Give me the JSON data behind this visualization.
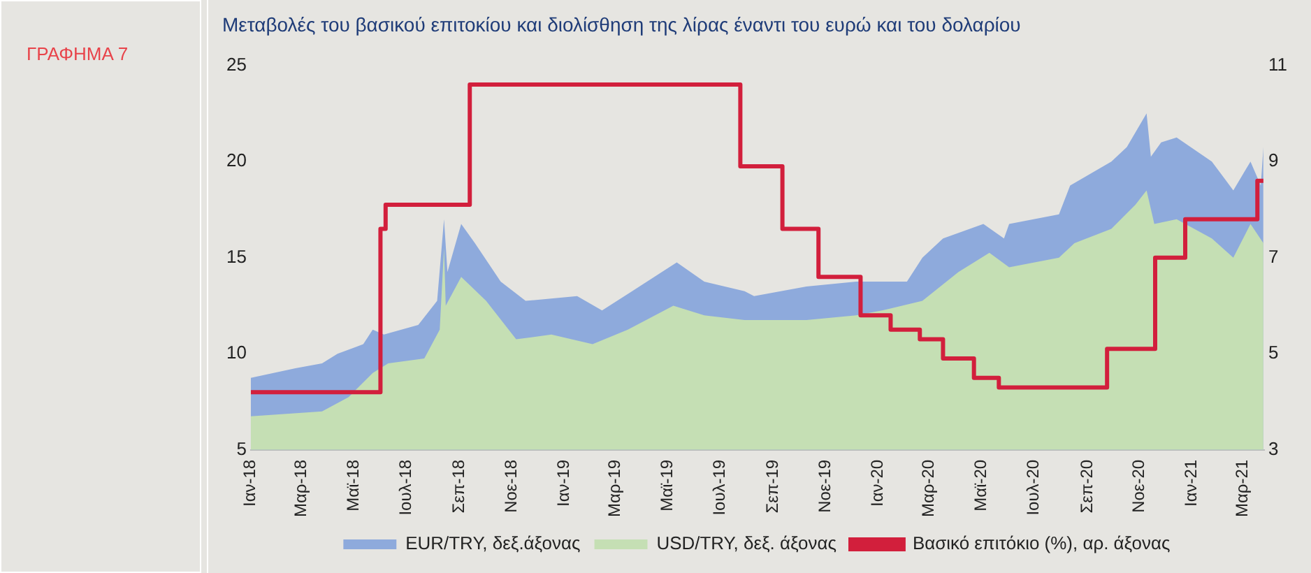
{
  "chart_data": {
    "type": "area",
    "title": "Μεταβολές του βασικού επιτοκίου και διολίσθηση της λίρας έναντι του ευρώ και του δολαρίου",
    "annotations": [
      "ΓΡΑΦΗΜΑ 7"
    ],
    "xlim": [
      "2018-01-01",
      "2021-03-26"
    ],
    "xticks": [
      {
        "value": "2018-01-01",
        "label": "Ιαν-18"
      },
      {
        "value": "2018-03-01",
        "label": "Μαρ-18"
      },
      {
        "value": "2018-05-01",
        "label": "Μαϊ-18"
      },
      {
        "value": "2018-07-01",
        "label": "Ιουλ-18"
      },
      {
        "value": "2018-09-01",
        "label": "Σεπ-18"
      },
      {
        "value": "2018-11-01",
        "label": "Νοε-18"
      },
      {
        "value": "2019-01-01",
        "label": "Ιαν-19"
      },
      {
        "value": "2019-03-01",
        "label": "Μαρ-19"
      },
      {
        "value": "2019-05-01",
        "label": "Μαϊ-19"
      },
      {
        "value": "2019-07-01",
        "label": "Ιουλ-19"
      },
      {
        "value": "2019-09-01",
        "label": "Σεπ-19"
      },
      {
        "value": "2019-11-01",
        "label": "Νοε-19"
      },
      {
        "value": "2020-01-01",
        "label": "Ιαν-20"
      },
      {
        "value": "2020-03-01",
        "label": "Μαρ-20"
      },
      {
        "value": "2020-05-01",
        "label": "Μαϊ-20"
      },
      {
        "value": "2020-07-01",
        "label": "Ιουλ-20"
      },
      {
        "value": "2020-09-01",
        "label": "Σεπ-20"
      },
      {
        "value": "2020-11-01",
        "label": "Νοε-20"
      },
      {
        "value": "2021-01-01",
        "label": "Ιαν-21"
      },
      {
        "value": "2021-03-01",
        "label": "Μαρ-21"
      }
    ],
    "ylim": [
      5,
      25
    ],
    "yticks": [
      5,
      10,
      15,
      20,
      25
    ],
    "y2lim": [
      3,
      11
    ],
    "y2ticks": [
      3,
      5,
      7,
      9,
      11
    ],
    "grid": false,
    "legend": "bottom",
    "marker": "none",
    "series": [
      {
        "name": "EUR/TRY, δεξ.άξονας",
        "axis": "y2",
        "color": "#8eaadc",
        "x": [
          "2018-01-01",
          "2018-02-22",
          "2018-03-25",
          "2018-04-12",
          "2018-05-12",
          "2018-05-23",
          "2018-06-05",
          "2018-07-15",
          "2018-08-06",
          "2018-08-14",
          "2018-08-18",
          "2018-09-03",
          "2018-09-19",
          "2018-10-19",
          "2018-11-17",
          "2019-01-16",
          "2019-02-14",
          "2019-03-21",
          "2019-05-12",
          "2019-06-13",
          "2019-07-30",
          "2019-08-10",
          "2019-10-10",
          "2019-12-07",
          "2020-02-04",
          "2020-02-22",
          "2020-03-17",
          "2020-05-03",
          "2020-05-27",
          "2020-06-02",
          "2020-07-30",
          "2020-08-12",
          "2020-09-29",
          "2020-10-17",
          "2020-11-09",
          "2020-11-14",
          "2020-11-26",
          "2020-12-14",
          "2021-01-24",
          "2021-02-18",
          "2021-03-10",
          "2021-03-22",
          "2021-03-25"
        ],
        "values": [
          4.5,
          4.7,
          4.8,
          5.0,
          5.2,
          5.5,
          5.4,
          5.6,
          6.1,
          7.8,
          6.7,
          7.7,
          7.3,
          6.5,
          6.1,
          6.2,
          5.9,
          6.3,
          6.9,
          6.5,
          6.3,
          6.2,
          6.4,
          6.5,
          6.5,
          7.0,
          7.4,
          7.7,
          7.4,
          7.7,
          7.9,
          8.5,
          9.0,
          9.3,
          10.0,
          9.1,
          9.4,
          9.5,
          9.0,
          8.4,
          9.0,
          8.5,
          9.3
        ]
      },
      {
        "name": "USD/TRY, δεξ. άξονας",
        "axis": "y2",
        "color": "#c5dfb4",
        "x": [
          "2018-01-01",
          "2018-03-25",
          "2018-04-25",
          "2018-05-23",
          "2018-06-10",
          "2018-07-22",
          "2018-08-09",
          "2018-08-14",
          "2018-08-16",
          "2018-09-03",
          "2018-10-02",
          "2018-11-06",
          "2018-12-17",
          "2019-02-03",
          "2019-03-16",
          "2019-05-08",
          "2019-06-13",
          "2019-07-30",
          "2019-08-10",
          "2019-10-10",
          "2019-12-07",
          "2020-01-06",
          "2020-02-22",
          "2020-04-04",
          "2020-05-10",
          "2020-06-02",
          "2020-07-30",
          "2020-08-17",
          "2020-09-29",
          "2020-10-27",
          "2020-11-09",
          "2020-11-18",
          "2020-12-14",
          "2021-01-24",
          "2021-02-18",
          "2021-03-10",
          "2021-03-25"
        ],
        "values": [
          3.7,
          3.8,
          4.1,
          4.6,
          4.8,
          4.9,
          5.5,
          7.2,
          6.0,
          6.6,
          6.1,
          5.3,
          5.4,
          5.2,
          5.5,
          6.0,
          5.8,
          5.7,
          5.7,
          5.7,
          5.8,
          5.9,
          6.1,
          6.7,
          7.1,
          6.8,
          7.0,
          7.3,
          7.6,
          8.1,
          8.4,
          7.7,
          7.8,
          7.4,
          7.0,
          7.7,
          7.3
        ]
      },
      {
        "name": "Βασικό επιτόκιο (%), αρ. άξονας",
        "type": "step",
        "axis": "y",
        "color": "#d21f3c",
        "x": [
          "2018-01-01",
          "2018-06-01",
          "2018-06-07",
          "2018-09-13",
          "2019-07-25",
          "2019-09-12",
          "2019-10-24",
          "2019-12-12",
          "2020-01-16",
          "2020-02-19",
          "2020-03-17",
          "2020-04-22",
          "2020-05-21",
          "2020-09-24",
          "2020-11-19",
          "2020-12-24",
          "2021-03-18",
          "2021-03-25"
        ],
        "values": [
          8,
          16.5,
          17.75,
          24,
          19.75,
          16.5,
          14,
          12,
          11.25,
          10.75,
          9.75,
          8.75,
          8.25,
          10.25,
          15,
          17,
          19,
          19
        ]
      }
    ]
  }
}
